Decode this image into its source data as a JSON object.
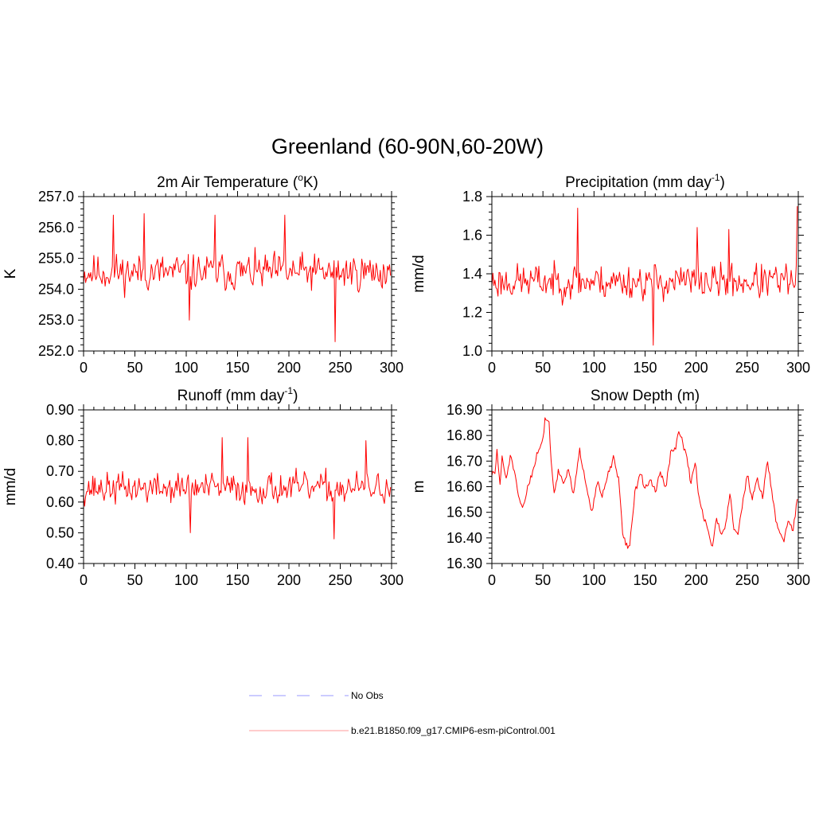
{
  "figure_title": "Greenland (60-90N,60-20W)",
  "legend": [
    {
      "label": "No Obs",
      "color": "#9999ff",
      "style": "dashed"
    },
    {
      "label": "b.e21.B1850.f09_g17.CMIP6-esm-piControl.001",
      "color": "#ff9999",
      "style": "solid"
    }
  ],
  "chart_data": [
    {
      "type": "line",
      "title_main": "2m Air Temperature (",
      "title_sup": "o",
      "title_tail": "K)",
      "xlabel": "",
      "ylabel": "K",
      "xlim": [
        0,
        300
      ],
      "ylim": [
        252.0,
        257.0
      ],
      "xticks": [
        0,
        50,
        100,
        150,
        200,
        250,
        300
      ],
      "yticks": [
        "252.0",
        "253.0",
        "254.0",
        "255.0",
        "256.0",
        "257.0"
      ],
      "series_color": "#ff0000",
      "gen": {
        "mean": 254.55,
        "amp": 0.65,
        "offset": 0.0,
        "seed": 11,
        "min": 252.3,
        "max": 256.5,
        "spikes": [
          [
            29,
            256.4
          ],
          [
            59,
            256.45
          ],
          [
            103,
            253.0
          ],
          [
            128,
            256.4
          ],
          [
            196,
            256.4
          ],
          [
            245,
            252.3
          ]
        ]
      }
    },
    {
      "type": "line",
      "title_main": "Precipitation (mm day",
      "title_sup": "-1",
      "title_tail": ")",
      "xlabel": "",
      "ylabel": "mm/d",
      "xlim": [
        0,
        300
      ],
      "ylim": [
        1.0,
        1.8
      ],
      "xticks": [
        0,
        50,
        100,
        150,
        200,
        250,
        300
      ],
      "yticks": [
        "1.0",
        "1.2",
        "1.4",
        "1.6",
        "1.8"
      ],
      "series_color": "#ff0000",
      "gen": {
        "mean": 1.36,
        "amp": 0.1,
        "offset": 0.0,
        "seed": 23,
        "min": 1.03,
        "max": 1.75,
        "spikes": [
          [
            84,
            1.74
          ],
          [
            158,
            1.03
          ],
          [
            201,
            1.64
          ],
          [
            232,
            1.63
          ],
          [
            299,
            1.75
          ]
        ]
      }
    },
    {
      "type": "line",
      "title_main": "Runoff (mm day",
      "title_sup": "-1",
      "title_tail": ")",
      "xlabel": "",
      "ylabel": "mm/d",
      "xlim": [
        0,
        300
      ],
      "ylim": [
        0.4,
        0.9
      ],
      "xticks": [
        0,
        50,
        100,
        150,
        200,
        250,
        300
      ],
      "yticks": [
        "0.40",
        "0.50",
        "0.60",
        "0.70",
        "0.80",
        "0.90"
      ],
      "series_color": "#ff0000",
      "gen": {
        "mean": 0.645,
        "amp": 0.055,
        "offset": 0.0,
        "seed": 37,
        "min": 0.48,
        "max": 0.81,
        "spikes": [
          [
            104,
            0.5
          ],
          [
            135,
            0.81
          ],
          [
            160,
            0.81
          ],
          [
            244,
            0.48
          ],
          [
            275,
            0.8
          ]
        ]
      }
    },
    {
      "type": "line",
      "title_main": "Snow Depth (m)",
      "title_sup": "",
      "title_tail": "",
      "xlabel": "",
      "ylabel": "m",
      "xlim": [
        0,
        300
      ],
      "ylim": [
        16.3,
        16.9
      ],
      "xticks": [
        0,
        50,
        100,
        150,
        200,
        250,
        300
      ],
      "yticks": [
        "16.30",
        "16.40",
        "16.50",
        "16.60",
        "16.70",
        "16.80",
        "16.90"
      ],
      "series_color": "#ff0000",
      "anchors": [
        [
          0,
          16.65
        ],
        [
          3,
          16.65
        ],
        [
          5,
          16.74
        ],
        [
          8,
          16.61
        ],
        [
          10,
          16.71
        ],
        [
          14,
          16.63
        ],
        [
          18,
          16.72
        ],
        [
          22,
          16.66
        ],
        [
          25,
          16.58
        ],
        [
          28,
          16.53
        ],
        [
          31,
          16.52
        ],
        [
          35,
          16.6
        ],
        [
          40,
          16.66
        ],
        [
          45,
          16.74
        ],
        [
          50,
          16.78
        ],
        [
          52,
          16.87
        ],
        [
          56,
          16.85
        ],
        [
          58,
          16.7
        ],
        [
          61,
          16.58
        ],
        [
          65,
          16.66
        ],
        [
          70,
          16.62
        ],
        [
          75,
          16.66
        ],
        [
          80,
          16.57
        ],
        [
          86,
          16.74
        ],
        [
          92,
          16.62
        ],
        [
          98,
          16.5
        ],
        [
          103,
          16.62
        ],
        [
          108,
          16.56
        ],
        [
          114,
          16.65
        ],
        [
          119,
          16.71
        ],
        [
          124,
          16.63
        ],
        [
          128,
          16.42
        ],
        [
          132,
          16.37
        ],
        [
          135,
          16.37
        ],
        [
          140,
          16.58
        ],
        [
          146,
          16.65
        ],
        [
          150,
          16.59
        ],
        [
          155,
          16.63
        ],
        [
          160,
          16.58
        ],
        [
          165,
          16.66
        ],
        [
          170,
          16.59
        ],
        [
          175,
          16.73
        ],
        [
          180,
          16.75
        ],
        [
          183,
          16.82
        ],
        [
          187,
          16.77
        ],
        [
          191,
          16.71
        ],
        [
          195,
          16.61
        ],
        [
          199,
          16.7
        ],
        [
          203,
          16.55
        ],
        [
          207,
          16.49
        ],
        [
          212,
          16.42
        ],
        [
          216,
          16.37
        ],
        [
          220,
          16.47
        ],
        [
          225,
          16.42
        ],
        [
          229,
          16.45
        ],
        [
          233,
          16.58
        ],
        [
          237,
          16.44
        ],
        [
          241,
          16.42
        ],
        [
          245,
          16.52
        ],
        [
          250,
          16.65
        ],
        [
          255,
          16.55
        ],
        [
          260,
          16.63
        ],
        [
          265,
          16.56
        ],
        [
          270,
          16.7
        ],
        [
          274,
          16.58
        ],
        [
          278,
          16.47
        ],
        [
          282,
          16.42
        ],
        [
          286,
          16.39
        ],
        [
          290,
          16.47
        ],
        [
          295,
          16.43
        ],
        [
          299,
          16.55
        ]
      ],
      "gen": {
        "seed": 51,
        "noise": 0.012
      }
    }
  ]
}
